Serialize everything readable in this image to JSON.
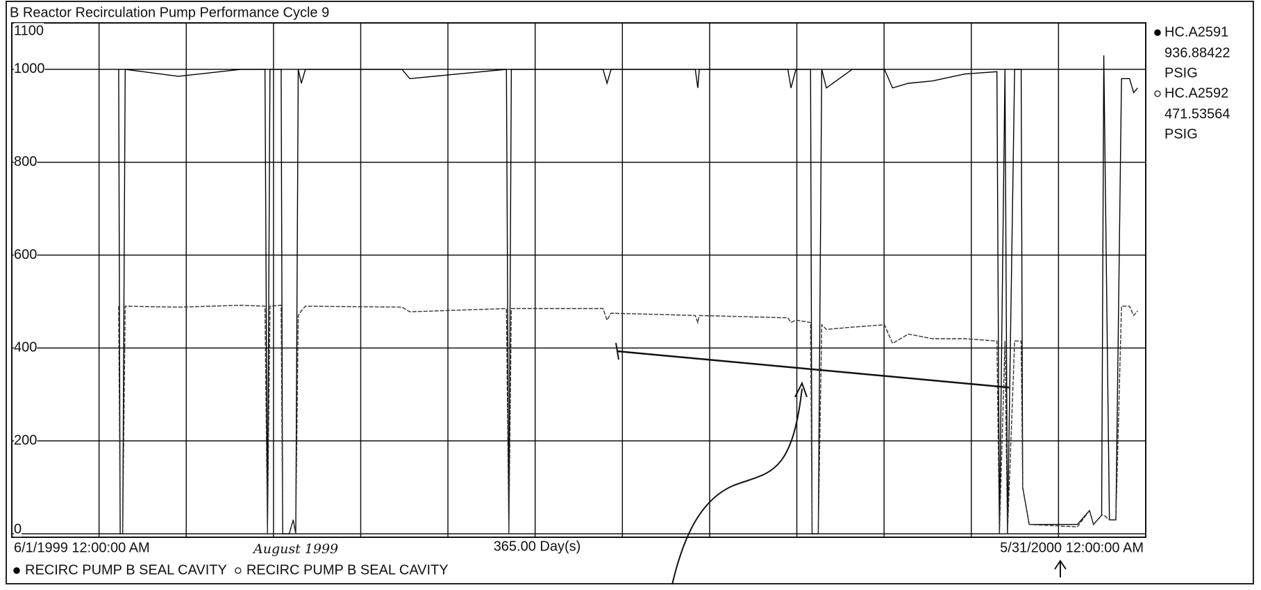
{
  "chart_data": {
    "type": "line",
    "title": "B Reactor Recirculation Pump Performance Cycle 9",
    "xlim": [
      0,
      365
    ],
    "ylim": [
      0,
      1100
    ],
    "yticks": [
      0,
      200,
      400,
      600,
      800,
      1000,
      1100
    ],
    "xticks": [
      {
        "value": 0,
        "label": "6/1/1999 12:00:00 AM"
      },
      {
        "value": 365,
        "label": "5/31/2000 12:00:00 AM"
      }
    ],
    "x_span_label": "365.00 Day(s)",
    "xgrid": [
      28.08,
      56.15,
      84.23,
      112.31,
      140.38,
      168.46,
      196.54,
      224.62,
      252.69,
      280.77,
      308.85,
      336.92
    ],
    "grid": true,
    "x": [
      34.4,
      34.9,
      35.7,
      36.5,
      53.6,
      73.8,
      81.5,
      82.3,
      83.1,
      86.7,
      87.2,
      89.3,
      90.6,
      91.4,
      92.2,
      93.2,
      94.5,
      125.6,
      128.1,
      159.2,
      160.0,
      160.8,
      190.3,
      191.6,
      192.9,
      220.0,
      220.8,
      221.3,
      249.8,
      250.8,
      252.4,
      257.1,
      257.6,
      259.6,
      260.7,
      262.2,
      270.5,
      280.9,
      283.5,
      288.6,
      296.4,
      306.8,
      317.1,
      317.9,
      319.7,
      320.5,
      322.8,
      324.9,
      325.4,
      327.5,
      343.0,
      346.9,
      348.2,
      350.8,
      351.5,
      353.3,
      355.4,
      357.2,
      359.8,
      361.1,
      362.4
    ],
    "series": [
      {
        "name": "HC.A2591",
        "description": "RECIRC PUMP B SEAL CAVITY",
        "current_value": 936.88422,
        "unit": "PSIG",
        "color": "#000000",
        "marker": "filled",
        "values": [
          1000,
          0,
          0,
          1000,
          985,
          1000,
          1000,
          0,
          1000,
          1000,
          0,
          0,
          30,
          0,
          1000,
          970,
          1000,
          1000,
          980,
          1000,
          0,
          1000,
          1000,
          970,
          1000,
          1000,
          960,
          1000,
          1000,
          960,
          1000,
          1000,
          0,
          0,
          1000,
          960,
          1000,
          1000,
          960,
          970,
          975,
          990,
          995,
          0,
          1000,
          0,
          1000,
          1000,
          100,
          20,
          20,
          50,
          20,
          40,
          1030,
          30,
          30,
          980,
          980,
          950,
          960
        ]
      },
      {
        "name": "HC.A2592",
        "description": "RECIRC PUMP B SEAL CAVITY",
        "current_value": 471.53564,
        "unit": "PSIG",
        "color": "#333333",
        "marker": "open",
        "values": [
          490,
          0,
          0,
          490,
          488,
          492,
          490,
          0,
          490,
          492,
          0,
          0,
          30,
          0,
          470,
          480,
          490,
          488,
          478,
          485,
          0,
          485,
          485,
          460,
          475,
          470,
          455,
          470,
          465,
          455,
          460,
          455,
          0,
          0,
          450,
          440,
          445,
          450,
          410,
          430,
          420,
          420,
          415,
          0,
          415,
          0,
          415,
          415,
          100,
          20,
          15,
          50,
          20,
          40,
          40,
          30,
          30,
          490,
          490,
          470,
          480
        ]
      }
    ],
    "trend_line": {
      "x": [
        194.9,
        321.0
      ],
      "y": [
        393,
        315
      ]
    },
    "annotation": "August 1999"
  }
}
